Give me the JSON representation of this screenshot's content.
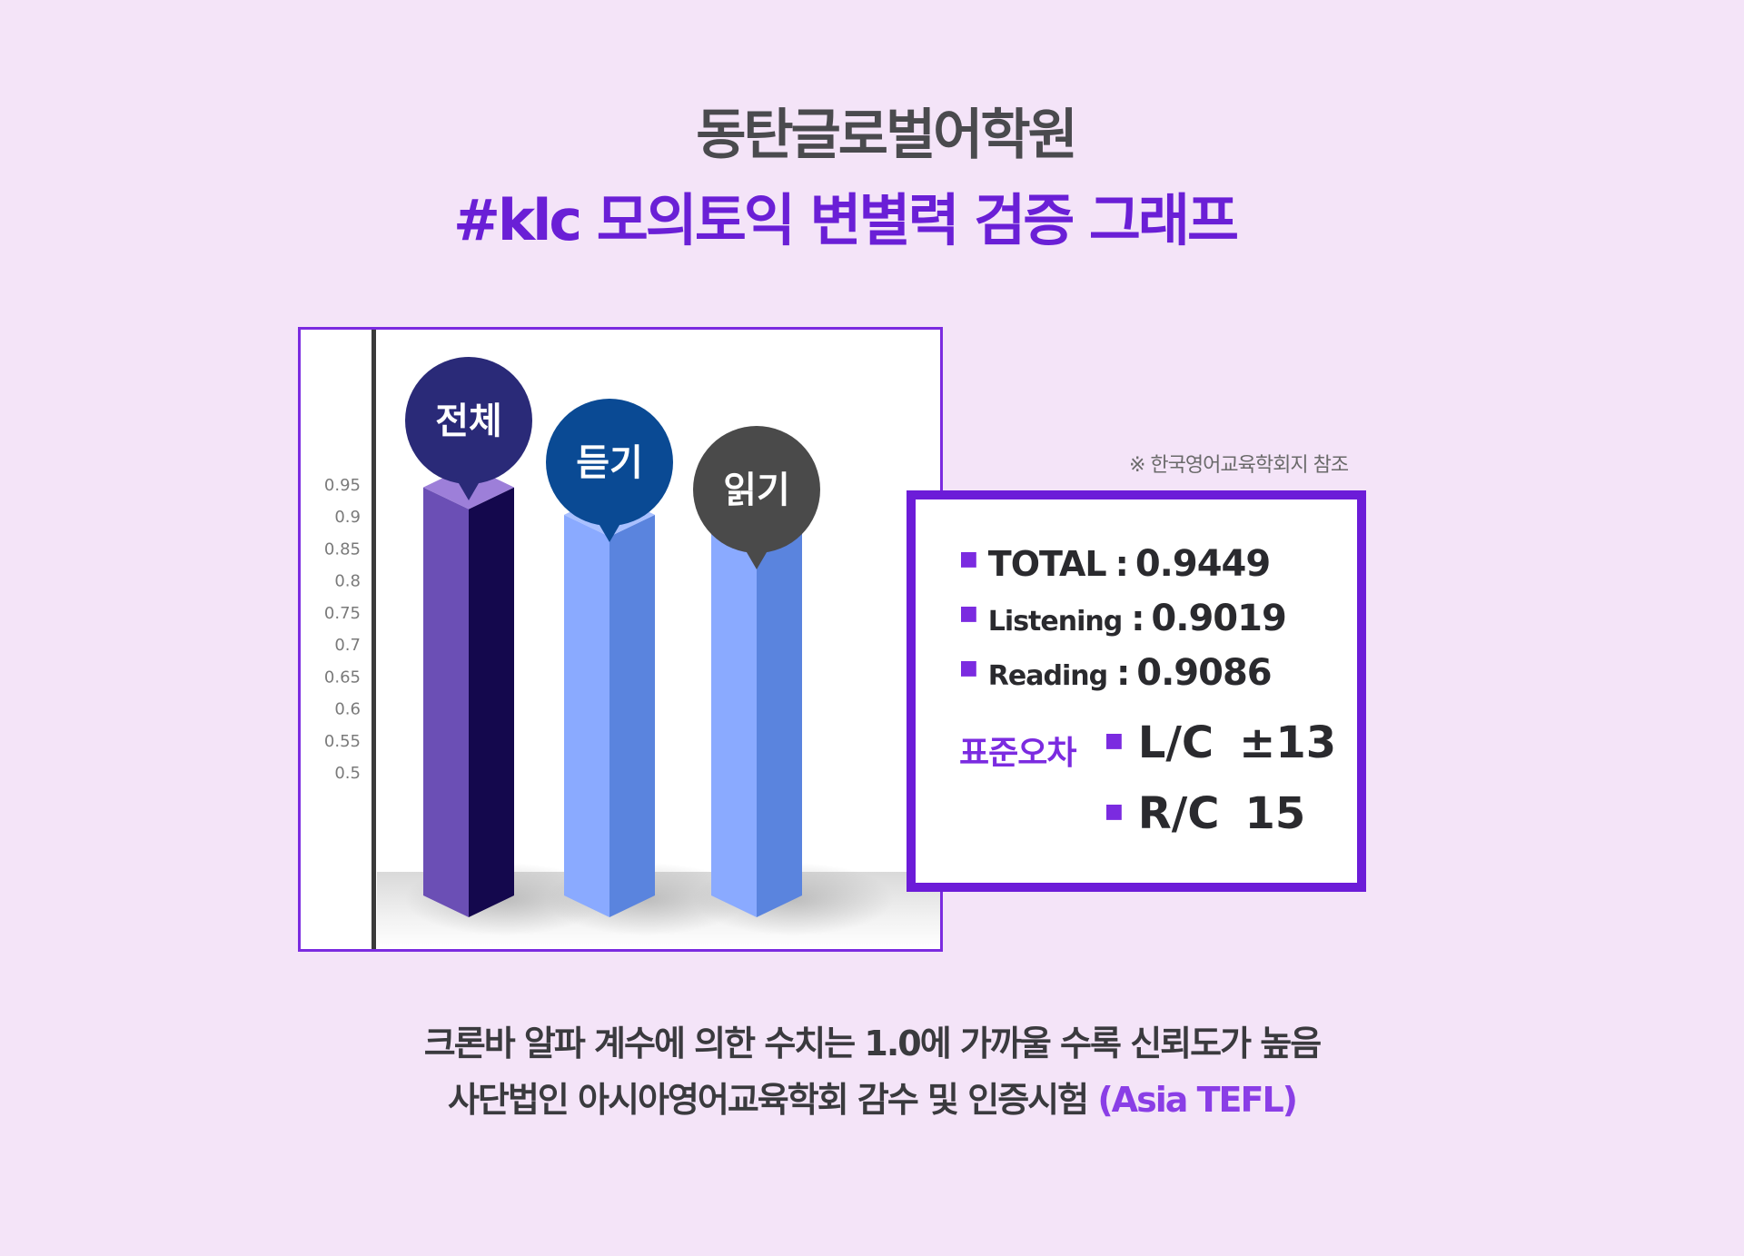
{
  "header": {
    "title": "동탄글로벌어학원",
    "subtitle": "#klc 모의토익 변별력 검증 그래프"
  },
  "chart_data": {
    "type": "bar",
    "categories": [
      "전체",
      "듣기",
      "읽기"
    ],
    "values": [
      0.9449,
      0.9019,
      0.9086
    ],
    "title": "",
    "xlabel": "",
    "ylabel": "",
    "ylim": [
      0.5,
      0.95
    ],
    "yticks": [
      "0.95",
      "0.9",
      "0.85",
      "0.8",
      "0.75",
      "0.7",
      "0.65",
      "0.6",
      "0.55",
      "0.5"
    ],
    "grid": false,
    "bar_colors": [
      {
        "front": "#6b4fb5",
        "side": "#14084d",
        "top": "#9d7fd9",
        "bubble": "#2a2a78"
      },
      {
        "front": "#8aaaff",
        "side": "#5a84de",
        "top": "#a9c0ff",
        "bubble": "#0a4a94"
      },
      {
        "front": "#8aaaff",
        "side": "#5a84de",
        "top": "#a9c0ff",
        "bubble": "#4a4a4a"
      }
    ]
  },
  "note": "※ 한국영어교육학회지 참조",
  "stats": [
    {
      "label": "TOTAL",
      "value": "0.9449"
    },
    {
      "label": "Listening",
      "value": "0.9019"
    },
    {
      "label": "Reading",
      "value": "0.9086"
    }
  ],
  "standard_error": {
    "label": "표준오차",
    "items": [
      {
        "name": "L/C",
        "value": "±13"
      },
      {
        "name": "R/C",
        "value": "15"
      }
    ]
  },
  "footer": {
    "line1": "크론바 알파 계수에 의한 수치는 1.0에 가까울 수록 신뢰도가 높음",
    "line2_main": "사단법인 아시아영어교육학회  감수 및 인증시험",
    "line2_accent": "(Asia TEFL)"
  },
  "colors": {
    "background": "#f4e4f8",
    "accent": "#6a1fd6",
    "border": "#7b2be0"
  }
}
